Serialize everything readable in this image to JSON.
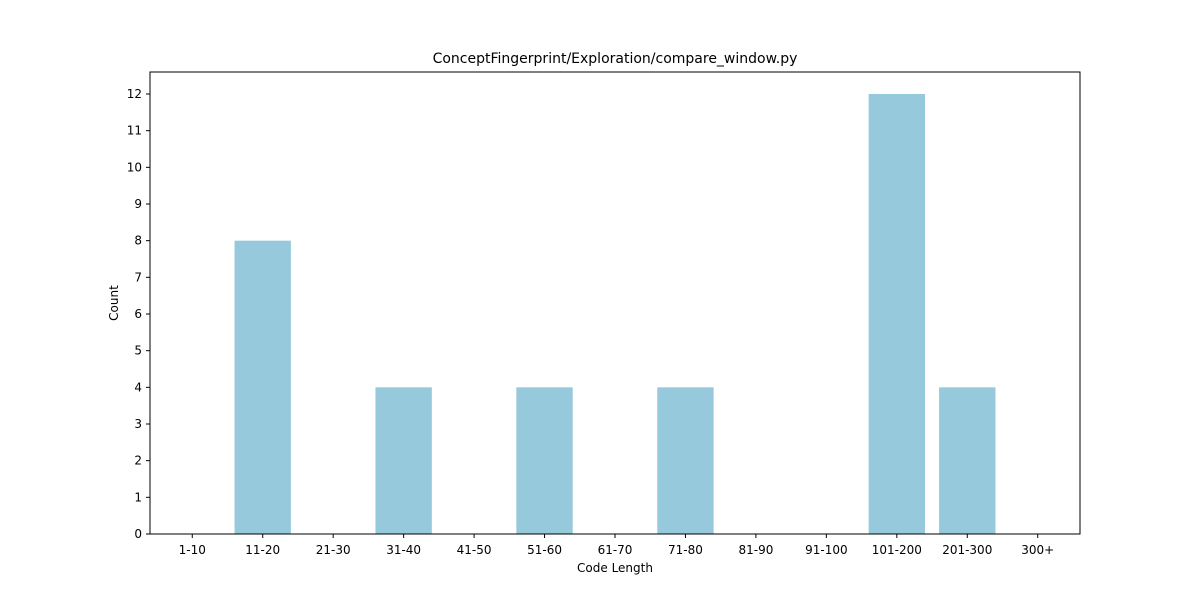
{
  "chart_data": {
    "type": "bar",
    "title": "ConceptFingerprint/Exploration/compare_window.py",
    "xlabel": "Code Length",
    "ylabel": "Count",
    "categories": [
      "1-10",
      "11-20",
      "21-30",
      "31-40",
      "41-50",
      "51-60",
      "61-70",
      "71-80",
      "81-90",
      "91-100",
      "101-200",
      "201-300",
      "300+"
    ],
    "values": [
      0,
      8,
      0,
      4,
      0,
      4,
      0,
      4,
      0,
      0,
      12,
      4,
      0
    ],
    "ylim": [
      0,
      12.6
    ],
    "yticks": [
      0,
      1,
      2,
      3,
      4,
      5,
      6,
      7,
      8,
      9,
      10,
      11,
      12
    ],
    "bar_color": "#96c9dc",
    "grid": false,
    "legend": "none"
  }
}
